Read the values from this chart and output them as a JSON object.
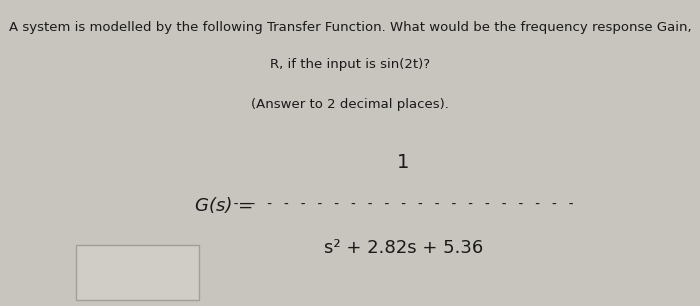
{
  "line1": "A system is modelled by the following Transfer Function. What would be the frequency response Gain,",
  "line2": "R, if the input is sin(2t)?",
  "line3": "(Answer to 2 decimal places).",
  "numerator": "1",
  "gs_label": "G(s) =",
  "denominator": "s² + 2.82s + 5.36",
  "dashes": "- - - - - - - - - - - - - - - - - - - - -",
  "bg_color": "#c8c4be",
  "text_color": "#1a1a1a",
  "box_color": "#d0ccc6",
  "box_edge_color": "#a0a09a"
}
